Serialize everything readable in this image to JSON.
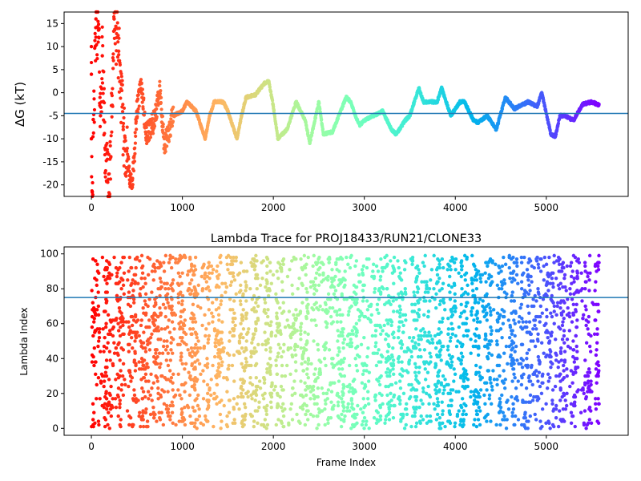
{
  "chart_data": [
    {
      "type": "scatter",
      "title": "",
      "xlabel": "",
      "ylabel": "ΔG (kT)",
      "xlim": [
        -300,
        5900
      ],
      "ylim": [
        -22.5,
        17.5
      ],
      "xticks": [
        0,
        1000,
        2000,
        3000,
        4000,
        5000
      ],
      "yticks": [
        -20,
        -15,
        -10,
        -5,
        0,
        5,
        10,
        15
      ],
      "colormap": "rainbow (frame index: red → violet)",
      "hline": {
        "y": -4.5,
        "color": "#1f77b4"
      },
      "series_summary": [
        {
          "x": 0,
          "y": 10
        },
        {
          "x": 0,
          "y": 4
        },
        {
          "x": 0,
          "y": -10
        },
        {
          "x": 10,
          "y": -21.5
        },
        {
          "x": 50,
          "y": 16
        },
        {
          "x": 80,
          "y": 12
        },
        {
          "x": 100,
          "y": -5
        },
        {
          "x": 120,
          "y": 8
        },
        {
          "x": 150,
          "y": -12
        },
        {
          "x": 200,
          "y": -22
        },
        {
          "x": 250,
          "y": 16
        },
        {
          "x": 300,
          "y": 9
        },
        {
          "x": 350,
          "y": -8
        },
        {
          "x": 420,
          "y": -18
        },
        {
          "x": 450,
          "y": -20.5
        },
        {
          "x": 500,
          "y": -4
        },
        {
          "x": 550,
          "y": 2
        },
        {
          "x": 600,
          "y": -9
        },
        {
          "x": 700,
          "y": -6
        },
        {
          "x": 750,
          "y": 1.5
        },
        {
          "x": 800,
          "y": -12
        },
        {
          "x": 900,
          "y": -5
        },
        {
          "x": 1000,
          "y": -4
        },
        {
          "x": 1050,
          "y": -2
        },
        {
          "x": 1150,
          "y": -4
        },
        {
          "x": 1250,
          "y": -10
        },
        {
          "x": 1300,
          "y": -5
        },
        {
          "x": 1350,
          "y": -2
        },
        {
          "x": 1450,
          "y": -2
        },
        {
          "x": 1500,
          "y": -4
        },
        {
          "x": 1600,
          "y": -10
        },
        {
          "x": 1650,
          "y": -5
        },
        {
          "x": 1700,
          "y": -1
        },
        {
          "x": 1800,
          "y": -0.5
        },
        {
          "x": 1900,
          "y": 2
        },
        {
          "x": 1950,
          "y": 2.5
        },
        {
          "x": 2000,
          "y": -3
        },
        {
          "x": 2050,
          "y": -10
        },
        {
          "x": 2150,
          "y": -8
        },
        {
          "x": 2250,
          "y": -2
        },
        {
          "x": 2350,
          "y": -6
        },
        {
          "x": 2400,
          "y": -11
        },
        {
          "x": 2500,
          "y": -2
        },
        {
          "x": 2550,
          "y": -9
        },
        {
          "x": 2650,
          "y": -8.5
        },
        {
          "x": 2700,
          "y": -6
        },
        {
          "x": 2800,
          "y": -1
        },
        {
          "x": 2850,
          "y": -2
        },
        {
          "x": 2900,
          "y": -5
        },
        {
          "x": 2950,
          "y": -7
        },
        {
          "x": 3000,
          "y": -6
        },
        {
          "x": 3100,
          "y": -5
        },
        {
          "x": 3200,
          "y": -4
        },
        {
          "x": 3300,
          "y": -8
        },
        {
          "x": 3350,
          "y": -9
        },
        {
          "x": 3450,
          "y": -6
        },
        {
          "x": 3500,
          "y": -5
        },
        {
          "x": 3600,
          "y": 1
        },
        {
          "x": 3650,
          "y": -2
        },
        {
          "x": 3750,
          "y": -2
        },
        {
          "x": 3800,
          "y": -2
        },
        {
          "x": 3850,
          "y": 1
        },
        {
          "x": 3950,
          "y": -5
        },
        {
          "x": 4050,
          "y": -2
        },
        {
          "x": 4100,
          "y": -2
        },
        {
          "x": 4200,
          "y": -6
        },
        {
          "x": 4250,
          "y": -6.5
        },
        {
          "x": 4350,
          "y": -5
        },
        {
          "x": 4450,
          "y": -8
        },
        {
          "x": 4550,
          "y": -1
        },
        {
          "x": 4650,
          "y": -3.5
        },
        {
          "x": 4700,
          "y": -3
        },
        {
          "x": 4800,
          "y": -2
        },
        {
          "x": 4900,
          "y": -3
        },
        {
          "x": 4950,
          "y": 0
        },
        {
          "x": 5050,
          "y": -9
        },
        {
          "x": 5100,
          "y": -9.5
        },
        {
          "x": 5150,
          "y": -5
        },
        {
          "x": 5200,
          "y": -5
        },
        {
          "x": 5300,
          "y": -6
        },
        {
          "x": 5400,
          "y": -2.5
        },
        {
          "x": 5500,
          "y": -2
        },
        {
          "x": 5560,
          "y": -2.5
        }
      ]
    },
    {
      "type": "scatter",
      "title": "Lambda Trace for PROJ18433/RUN21/CLONE33",
      "xlabel": "Frame Index",
      "ylabel": "Lambda Index",
      "xlim": [
        -300,
        5900
      ],
      "ylim": [
        -4,
        104
      ],
      "xticks": [
        0,
        1000,
        2000,
        3000,
        4000,
        5000
      ],
      "yticks": [
        0,
        20,
        40,
        60,
        80,
        100
      ],
      "colormap": "rainbow (frame index: red → violet)",
      "hline": {
        "y": 75,
        "color": "#1f77b4"
      },
      "x_range": [
        0,
        5580
      ],
      "y_range": [
        0,
        99
      ],
      "sparse_columns": [
        1270,
        2510,
        3240,
        4480,
        4600,
        5280
      ]
    }
  ],
  "plot_params": {
    "dense_point_count_top": 2600,
    "dense_point_count_bottom": 4200
  }
}
